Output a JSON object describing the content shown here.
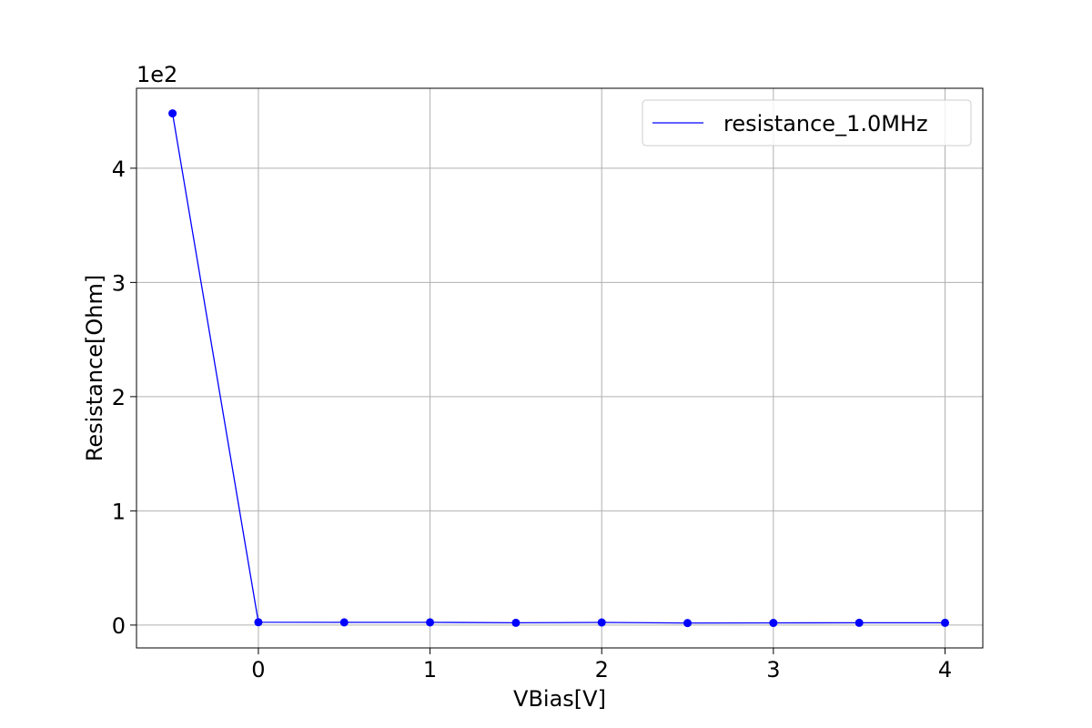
{
  "chart_data": {
    "type": "line",
    "xlabel": "VBias[V]",
    "ylabel": "Resistance[Ohm]",
    "y_offset_text": "1e2",
    "xlim": [
      -0.71,
      4.22
    ],
    "ylim": [
      -0.2,
      4.7
    ],
    "x_ticks": [
      0,
      1,
      2,
      3,
      4
    ],
    "y_ticks": [
      0,
      1,
      2,
      3,
      4
    ],
    "grid": true,
    "legend_position": "top-right",
    "series": [
      {
        "name": "resistance_1.0MHz",
        "color": "#0000ff",
        "marker": "circle",
        "x": [
          -0.5,
          0.0,
          0.5,
          1.0,
          1.5,
          2.0,
          2.5,
          3.0,
          3.5,
          4.0
        ],
        "y": [
          4.48,
          0.025,
          0.024,
          0.024,
          0.02,
          0.023,
          0.018,
          0.019,
          0.02,
          0.02
        ]
      }
    ]
  }
}
